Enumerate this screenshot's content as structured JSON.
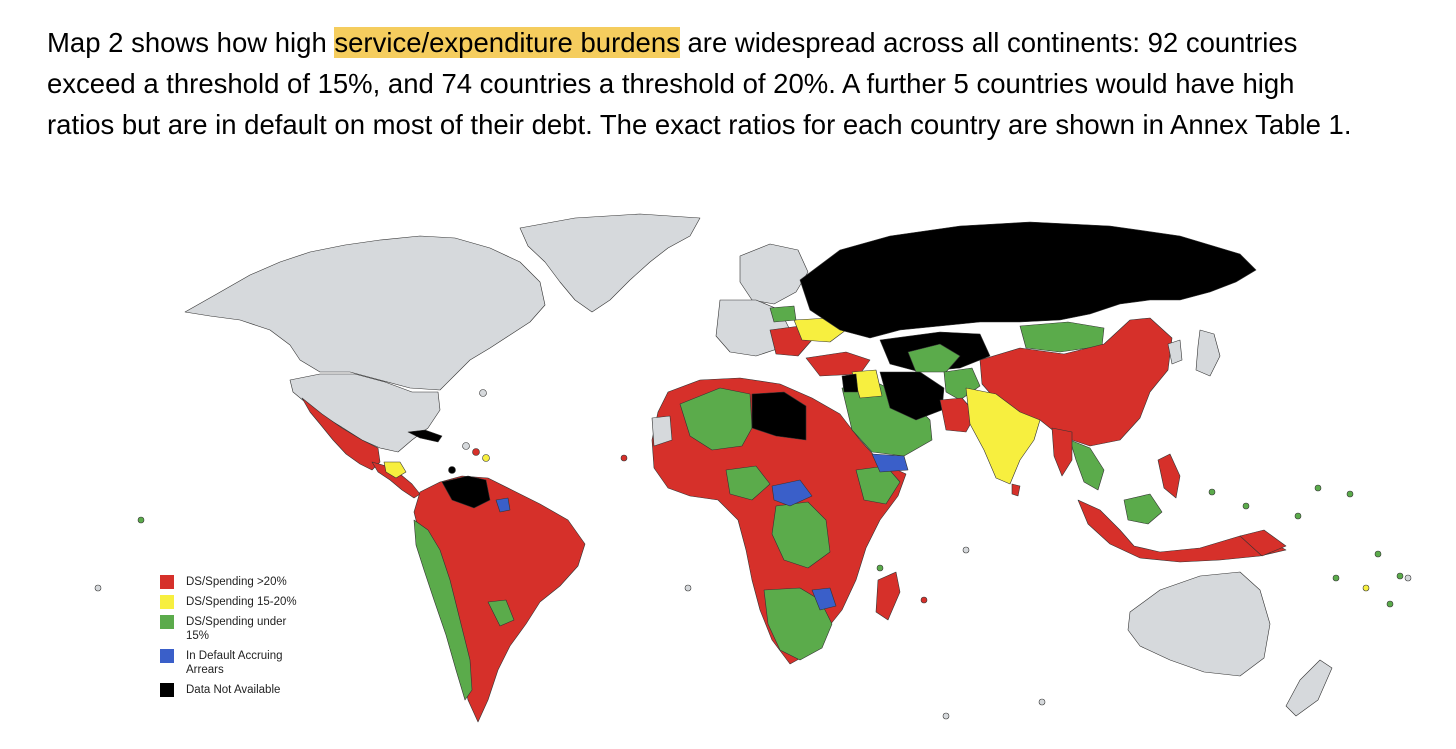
{
  "paragraph": {
    "line1_before": "Map 2 shows how high ",
    "highlight": "service/expenditure burdens",
    "line1_after": " are widespread across all continents: 92 countries",
    "line2": "exceed a threshold of 15%, and 74 countries a threshold of 20%. A further 5 countries would have high",
    "line3": "ratios but are in default on most of their debt. The exact ratios for each country are shown in Annex Table 1."
  },
  "colors": {
    "over20": "#d6302a",
    "between15_20": "#f7ef3f",
    "under15": "#5bab4b",
    "default": "#3a5fc9",
    "na": "#000000",
    "not_covered": "#d6d9dc",
    "highlight": "#f5cd5e"
  },
  "legend": {
    "items": [
      {
        "label": "DS/Spending >20%",
        "color": "#d6302a"
      },
      {
        "label": "DS/Spending 15-20%",
        "color": "#f7ef3f"
      },
      {
        "label": "DS/Spending under 15%",
        "color": "#5bab4b"
      },
      {
        "label": "In Default Accruing Arrears",
        "color": "#3a5fc9"
      },
      {
        "label": "Data Not Available",
        "color": "#000000"
      }
    ]
  }
}
